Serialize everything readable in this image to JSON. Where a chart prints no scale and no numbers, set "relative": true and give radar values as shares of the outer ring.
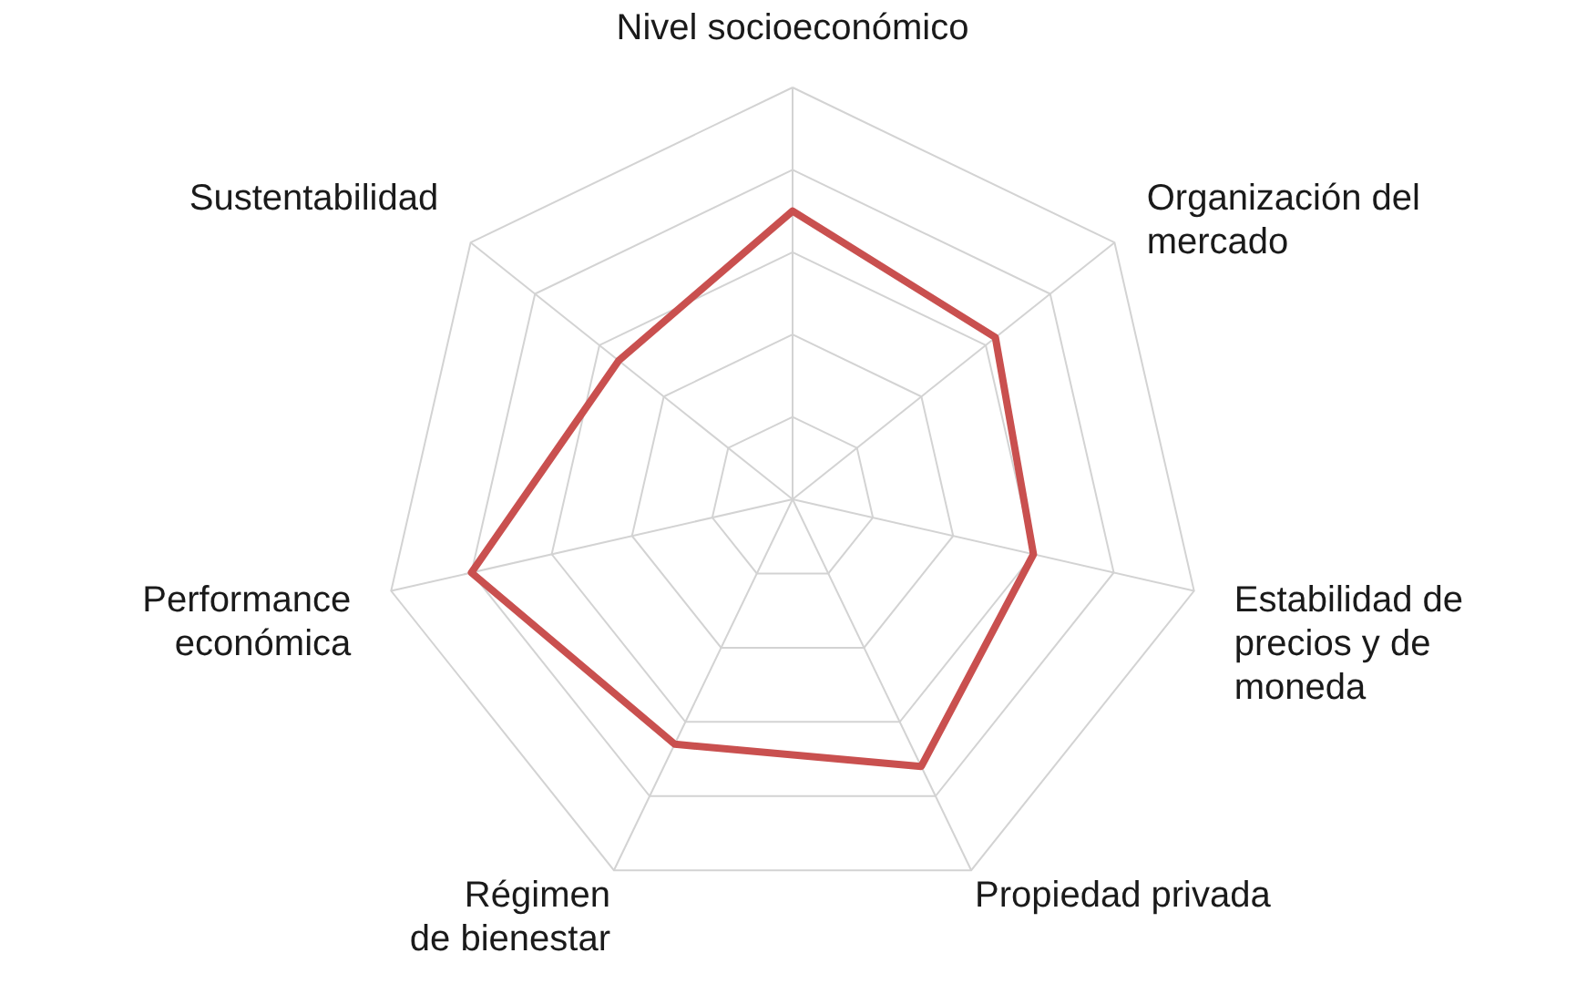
{
  "chart_data": {
    "type": "radar",
    "relative": true,
    "grid": true,
    "categories": [
      "Nivel socioeconómico",
      "Organización del\nmercado",
      "Estabilidad de\nprecios y de\nmoneda",
      "Propiedad privada",
      "Régimen\nde bienestar",
      "Performance\neconómica",
      "Sustentabilidad"
    ],
    "series": [
      {
        "color": "#c9504f",
        "values": [
          0.7,
          0.63,
          0.6,
          0.72,
          0.66,
          0.8,
          0.54
        ]
      }
    ]
  }
}
